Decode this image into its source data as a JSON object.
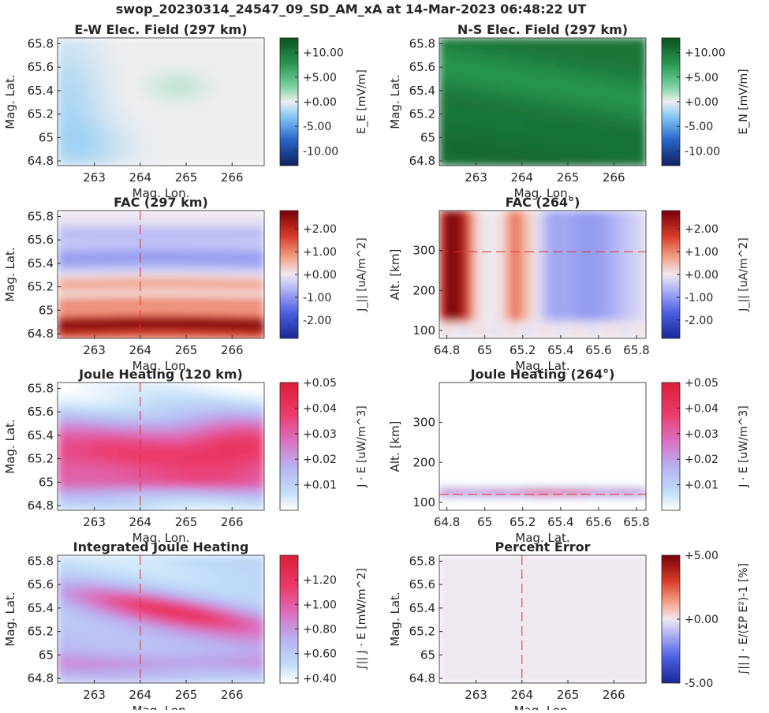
{
  "figure": {
    "title": "swop_20230314_24547_09_SD_AM_xA at 14-Mar-2023 06:48:22 UT"
  },
  "chart_data": [
    {
      "id": "ew-field",
      "type": "heatmap",
      "title": "E-W Elec. Field (297 km)",
      "xlabel": "Mag. Lon.",
      "ylabel": "Mag. Lat.",
      "xlim": [
        262.2,
        266.7
      ],
      "ylim": [
        64.76,
        65.85
      ],
      "xticks": [
        "263",
        "264",
        "265",
        "266"
      ],
      "yticks": [
        "64.8",
        "65",
        "65.2",
        "65.4",
        "65.6",
        "65.8"
      ],
      "cmap": "diverging-green",
      "clim": [
        -13,
        13
      ],
      "colorbar": {
        "label": "E_E [mV/m]",
        "ticks": [
          "+10.00",
          "+5.00",
          "+0.00",
          "-5.00",
          "-10.00"
        ]
      },
      "pattern": "ew"
    },
    {
      "id": "ns-field",
      "type": "heatmap",
      "title": "N-S Elec. Field (297 km)",
      "xlabel": "Mag. Lon.",
      "ylabel": "Mag. Lat.",
      "xlim": [
        262.2,
        266.7
      ],
      "ylim": [
        64.76,
        65.85
      ],
      "xticks": [
        "263",
        "264",
        "265",
        "266"
      ],
      "yticks": [
        "64.8",
        "65",
        "65.2",
        "65.4",
        "65.6",
        "65.8"
      ],
      "cmap": "diverging-green",
      "clim": [
        -13,
        13
      ],
      "colorbar": {
        "label": "E_N [mV/m]",
        "ticks": [
          "+10.00",
          "+5.00",
          "+0.00",
          "-5.00",
          "-10.00"
        ]
      },
      "pattern": "ns"
    },
    {
      "id": "fac-297",
      "type": "heatmap",
      "title": "FAC (297 km)",
      "xlabel": "Mag. Lon.",
      "ylabel": "Mag. Lat.",
      "xlim": [
        262.2,
        266.7
      ],
      "ylim": [
        64.76,
        65.85
      ],
      "xticks": [
        "263",
        "264",
        "265",
        "266"
      ],
      "yticks": [
        "64.8",
        "65",
        "65.2",
        "65.4",
        "65.6",
        "65.8"
      ],
      "cmap": "diverging-red-blue",
      "clim": [
        -2.8,
        2.8
      ],
      "colorbar": {
        "label": "J_|| [uA/m^2]",
        "ticks": [
          "+2.00",
          "+1.00",
          "+0.00",
          "-1.00",
          "-2.00"
        ]
      },
      "marker_line": {
        "orientation": "vertical",
        "value": 264
      },
      "pattern": "fac"
    },
    {
      "id": "fac-264",
      "type": "heatmap",
      "title": "FAC (264°)",
      "xlabel": "Mag. Lat.",
      "ylabel": "Alt. [km]",
      "xlim": [
        64.76,
        65.85
      ],
      "ylim": [
        80,
        400
      ],
      "xticks": [
        "64.8",
        "65",
        "65.2",
        "65.4",
        "65.6",
        "65.8"
      ],
      "yticks": [
        "100",
        "200",
        "300"
      ],
      "cmap": "diverging-red-blue",
      "clim": [
        -2.8,
        2.8
      ],
      "colorbar": {
        "label": "J_|| [uA/m^2]",
        "ticks": [
          "+2.00",
          "+1.00",
          "+0.00",
          "-1.00",
          "-2.00"
        ]
      },
      "marker_line": {
        "orientation": "horizontal",
        "value": 297
      },
      "pattern": "facAlt"
    },
    {
      "id": "jh-120",
      "type": "heatmap",
      "title": "Joule Heating (120 km)",
      "xlabel": "Mag. Lon.",
      "ylabel": "Mag. Lat.",
      "xlim": [
        262.2,
        266.7
      ],
      "ylim": [
        64.76,
        65.85
      ],
      "xticks": [
        "263",
        "264",
        "265",
        "266"
      ],
      "yticks": [
        "64.8",
        "65",
        "65.2",
        "65.4",
        "65.6",
        "65.8"
      ],
      "cmap": "sequential-white-blue-red",
      "clim": [
        0,
        0.05
      ],
      "colorbar": {
        "label": "J · E [uW/m^3]",
        "ticks": [
          "+0.05",
          "+0.04",
          "+0.03",
          "+0.02",
          "+0.01"
        ]
      },
      "marker_line": {
        "orientation": "vertical",
        "value": 264
      },
      "pattern": "jh"
    },
    {
      "id": "jh-264",
      "type": "heatmap",
      "title": "Joule Heating (264°)",
      "xlabel": "Mag. Lat.",
      "ylabel": "Alt. [km]",
      "xlim": [
        64.76,
        65.85
      ],
      "ylim": [
        80,
        400
      ],
      "xticks": [
        "64.8",
        "65",
        "65.2",
        "65.4",
        "65.6",
        "65.8"
      ],
      "yticks": [
        "100",
        "200",
        "300"
      ],
      "cmap": "sequential-white-blue-red",
      "clim": [
        0,
        0.05
      ],
      "colorbar": {
        "label": "J · E [uW/m^3]",
        "ticks": [
          "+0.05",
          "+0.04",
          "+0.03",
          "+0.02",
          "+0.01"
        ]
      },
      "marker_line": {
        "orientation": "horizontal",
        "value": 120
      },
      "pattern": "jhAlt"
    },
    {
      "id": "int-jh",
      "type": "heatmap",
      "title": "Integrated Joule Heating",
      "xlabel": "Mag. Lon.",
      "ylabel": "Mag. Lat.",
      "xlim": [
        262.2,
        266.7
      ],
      "ylim": [
        64.76,
        65.85
      ],
      "xticks": [
        "263",
        "264",
        "265",
        "266"
      ],
      "yticks": [
        "64.8",
        "65",
        "65.2",
        "65.4",
        "65.6",
        "65.8"
      ],
      "cmap": "sequential-white-blue-red",
      "clim": [
        0.36,
        1.4
      ],
      "colorbar": {
        "label": "∫|| J · E [mW/m^2]",
        "ticks": [
          "+1.20",
          "+1.00",
          "+0.80",
          "+0.60",
          "+0.40"
        ]
      },
      "marker_line": {
        "orientation": "vertical",
        "value": 264
      },
      "pattern": "ijh"
    },
    {
      "id": "pct-err",
      "type": "heatmap",
      "title": "Percent Error",
      "xlabel": "Mag. Lon.",
      "ylabel": "Mag. Lat.",
      "xlim": [
        262.2,
        266.7
      ],
      "ylim": [
        64.76,
        65.85
      ],
      "xticks": [
        "263",
        "264",
        "265",
        "266"
      ],
      "yticks": [
        "64.8",
        "65",
        "65.2",
        "65.4",
        "65.6",
        "65.8"
      ],
      "cmap": "diverging-red-blue",
      "clim": [
        -5,
        5
      ],
      "colorbar": {
        "label": "∫|| J · E/(ΣP E²)-1 [%]",
        "ticks": [
          "+5.00",
          "+0.00",
          "-5.00"
        ]
      },
      "marker_line": {
        "orientation": "vertical",
        "value": 264
      },
      "pattern": "pct"
    }
  ]
}
